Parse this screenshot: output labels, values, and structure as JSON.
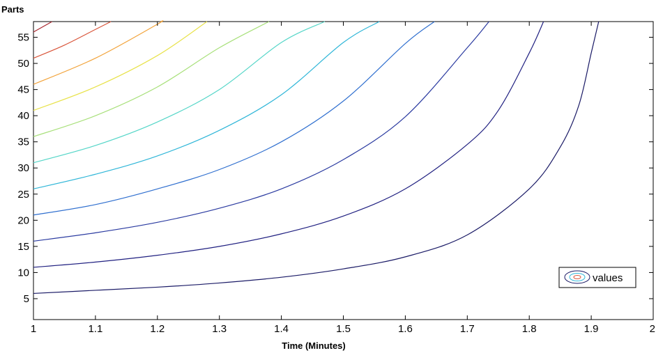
{
  "chart_data": {
    "type": "contour",
    "xlabel": "Time (Minutes)",
    "ylabel": "Parts",
    "xlim": [
      1,
      2
    ],
    "ylim": [
      1,
      58
    ],
    "xticks": [
      1,
      1.1,
      1.2,
      1.3,
      1.4,
      1.5,
      1.6,
      1.7,
      1.8,
      1.9,
      2
    ],
    "xtick_labels": [
      "1",
      "1.1",
      "1.2",
      "1.3",
      "1.4",
      "1.5",
      "1.6",
      "1.7",
      "1.8",
      "1.9",
      "2"
    ],
    "yticks": [
      5,
      10,
      15,
      20,
      25,
      30,
      35,
      40,
      45,
      50,
      55
    ],
    "ytick_labels": [
      "5",
      "10",
      "15",
      "20",
      "25",
      "30",
      "35",
      "40",
      "45",
      "50",
      "55"
    ],
    "grid": false,
    "legend": {
      "entries": [
        "values"
      ],
      "position": "lower-right"
    },
    "colormap": "jet",
    "series": [
      {
        "color": "#1a1a66",
        "points": [
          [
            1,
            6
          ],
          [
            1.1,
            6.6
          ],
          [
            1.2,
            7.2
          ],
          [
            1.3,
            8.0
          ],
          [
            1.4,
            9.1
          ],
          [
            1.5,
            10.7
          ],
          [
            1.6,
            13.0
          ],
          [
            1.7,
            17.2
          ],
          [
            1.8,
            26.0
          ],
          [
            1.85,
            34.0
          ],
          [
            1.88,
            42.0
          ],
          [
            1.9,
            52.0
          ],
          [
            1.912,
            58.0
          ]
        ]
      },
      {
        "color": "#1f1f80",
        "points": [
          [
            1,
            11
          ],
          [
            1.1,
            12.0
          ],
          [
            1.2,
            13.3
          ],
          [
            1.3,
            15.0
          ],
          [
            1.4,
            17.4
          ],
          [
            1.5,
            20.8
          ],
          [
            1.6,
            26.0
          ],
          [
            1.7,
            34.5
          ],
          [
            1.75,
            41.0
          ],
          [
            1.8,
            52.0
          ],
          [
            1.823,
            58.0
          ]
        ]
      },
      {
        "color": "#2a3aa0",
        "points": [
          [
            1,
            16
          ],
          [
            1.1,
            17.6
          ],
          [
            1.2,
            19.6
          ],
          [
            1.3,
            22.3
          ],
          [
            1.4,
            26.0
          ],
          [
            1.5,
            31.6
          ],
          [
            1.6,
            39.8
          ],
          [
            1.7,
            53.0
          ],
          [
            1.735,
            58.0
          ]
        ]
      },
      {
        "color": "#2f6fcf",
        "points": [
          [
            1,
            21
          ],
          [
            1.1,
            23.0
          ],
          [
            1.2,
            26.0
          ],
          [
            1.3,
            29.7
          ],
          [
            1.4,
            35.0
          ],
          [
            1.5,
            42.8
          ],
          [
            1.6,
            53.8
          ],
          [
            1.647,
            58.0
          ]
        ]
      },
      {
        "color": "#2fb6d8",
        "points": [
          [
            1,
            26
          ],
          [
            1.1,
            28.8
          ],
          [
            1.2,
            32.3
          ],
          [
            1.3,
            37.2
          ],
          [
            1.4,
            44.0
          ],
          [
            1.5,
            54.0
          ],
          [
            1.558,
            58.0
          ]
        ]
      },
      {
        "color": "#55d6c8",
        "points": [
          [
            1,
            31
          ],
          [
            1.1,
            34.3
          ],
          [
            1.2,
            38.8
          ],
          [
            1.3,
            45.0
          ],
          [
            1.4,
            54.0
          ],
          [
            1.47,
            58.0
          ]
        ]
      },
      {
        "color": "#a8e07a",
        "points": [
          [
            1,
            36
          ],
          [
            1.1,
            40.0
          ],
          [
            1.2,
            45.5
          ],
          [
            1.3,
            53.0
          ],
          [
            1.38,
            58.0
          ]
        ]
      },
      {
        "color": "#e8e24a",
        "points": [
          [
            1,
            41
          ],
          [
            1.1,
            45.5
          ],
          [
            1.2,
            51.5
          ],
          [
            1.28,
            58.0
          ]
        ]
      },
      {
        "color": "#f2a33a",
        "points": [
          [
            1,
            46
          ],
          [
            1.1,
            51.0
          ],
          [
            1.2,
            57.5
          ],
          [
            1.205,
            58.0
          ]
        ]
      },
      {
        "color": "#d9553a",
        "points": [
          [
            1,
            51
          ],
          [
            1.05,
            53.5
          ],
          [
            1.1,
            56.5
          ],
          [
            1.125,
            58.0
          ]
        ]
      },
      {
        "color": "#a8262e",
        "points": [
          [
            1,
            56
          ],
          [
            1.03,
            58.0
          ]
        ]
      }
    ]
  }
}
